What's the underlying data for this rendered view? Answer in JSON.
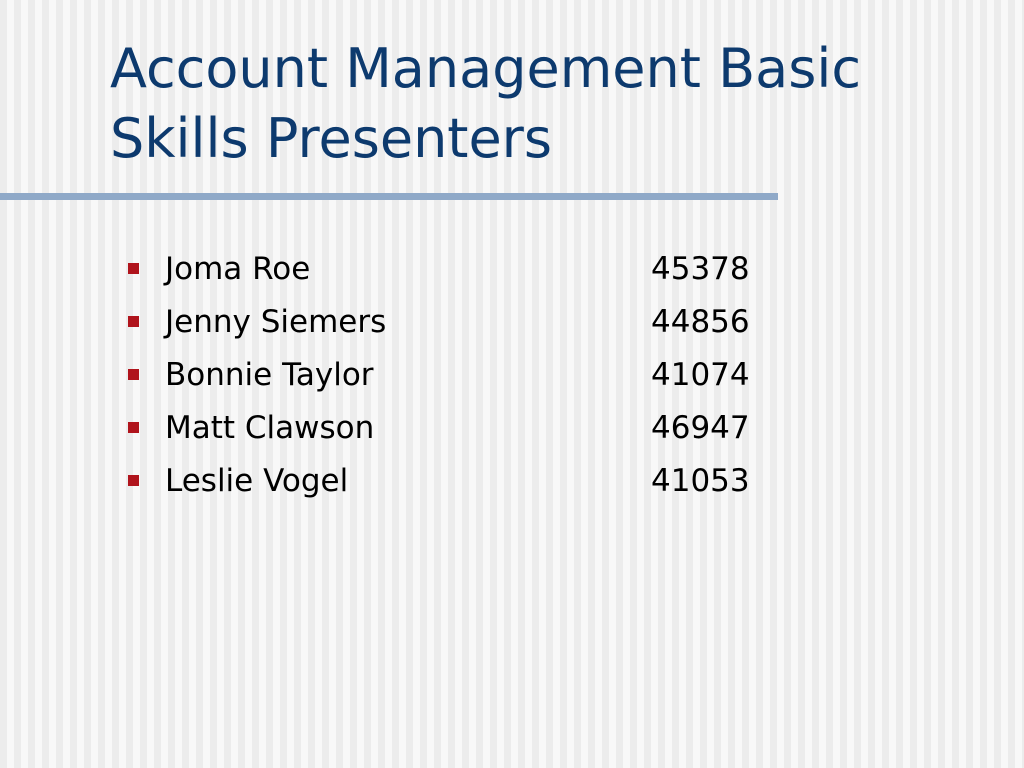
{
  "slide": {
    "title_lines": [
      "Account Management Basic",
      "Skills Presenters"
    ],
    "presenters": [
      {
        "name": "Joma Roe",
        "number": "45378"
      },
      {
        "name": "Jenny Siemers",
        "number": "44856"
      },
      {
        "name": "Bonnie Taylor",
        "number": "41074"
      },
      {
        "name": "Matt Clawson",
        "number": "46947"
      },
      {
        "name": "Leslie Vogel",
        "number": "41053"
      }
    ]
  },
  "colors": {
    "title": "#0d3a6e",
    "rule": "#8fa9c8",
    "bullet": "#b0141c",
    "text": "#000000"
  }
}
